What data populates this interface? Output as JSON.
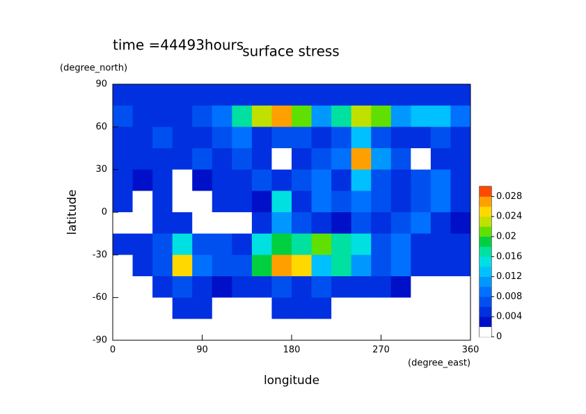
{
  "chart_data": {
    "type": "contour",
    "title": "surface stress",
    "subtitle": "time =44493hours",
    "x_label": "longitude",
    "x_units": "(degree_east)",
    "y_label": "latitude",
    "y_units": "(degree_north)",
    "xlim": [
      0,
      360
    ],
    "xticks": [
      0,
      90,
      180,
      270,
      360
    ],
    "ylim": [
      -90,
      90
    ],
    "yticks": [
      -90,
      -60,
      -30,
      0,
      30,
      60,
      90
    ],
    "x": [
      10,
      30,
      50,
      70,
      90,
      110,
      130,
      150,
      170,
      190,
      210,
      230,
      250,
      270,
      290,
      310,
      330,
      350
    ],
    "y": [
      82.5,
      67.5,
      52.5,
      37.5,
      22.5,
      7.5,
      -7.5,
      -22.5,
      -37.5,
      -52.5,
      -67.5,
      -82.5
    ],
    "z": [
      [
        0.004,
        0.004,
        0.004,
        0.004,
        0.004,
        0.004,
        0.004,
        0.004,
        0.004,
        0.004,
        0.004,
        0.004,
        0.004,
        0.004,
        0.004,
        0.004,
        0.004,
        0.004
      ],
      [
        0.006,
        0.005,
        0.005,
        0.005,
        0.006,
        0.008,
        0.016,
        0.022,
        0.026,
        0.02,
        0.01,
        0.016,
        0.022,
        0.02,
        0.01,
        0.012,
        0.012,
        0.008
      ],
      [
        0.004,
        0.005,
        0.006,
        0.004,
        0.005,
        0.006,
        0.008,
        0.005,
        0.006,
        0.006,
        0.004,
        0.006,
        0.012,
        0.006,
        0.004,
        0.004,
        0.006,
        0.004
      ],
      [
        0.004,
        0.005,
        0.004,
        0.005,
        0.006,
        0.004,
        0.006,
        0.005,
        0.001,
        0.004,
        0.006,
        0.008,
        0.026,
        0.01,
        0.006,
        0.001,
        0.004,
        0.005
      ],
      [
        0.004,
        0.002,
        0.004,
        0.001,
        0.003,
        0.005,
        0.004,
        0.006,
        0.004,
        0.006,
        0.008,
        0.004,
        0.012,
        0.006,
        0.004,
        0.006,
        0.008,
        0.004
      ],
      [
        0.004,
        0.001,
        0.004,
        0.001,
        0.001,
        0.004,
        0.005,
        0.003,
        0.014,
        0.005,
        0.008,
        0.006,
        0.008,
        0.006,
        0.005,
        0.006,
        0.008,
        0.004
      ],
      [
        0.001,
        0.001,
        0.004,
        0.004,
        0.001,
        0.001,
        0.001,
        0.004,
        0.01,
        0.006,
        0.004,
        0.002,
        0.006,
        0.004,
        0.006,
        0.008,
        0.004,
        0.002
      ],
      [
        0.004,
        0.005,
        0.006,
        0.014,
        0.006,
        0.006,
        0.005,
        0.014,
        0.018,
        0.016,
        0.02,
        0.016,
        0.014,
        0.006,
        0.008,
        0.004,
        0.004,
        0.004
      ],
      [
        0.001,
        0.004,
        0.006,
        0.024,
        0.008,
        0.006,
        0.006,
        0.018,
        0.026,
        0.024,
        0.012,
        0.016,
        0.01,
        0.006,
        0.008,
        0.005,
        0.005,
        0.004
      ],
      [
        0.001,
        0.001,
        0.004,
        0.006,
        0.004,
        0.003,
        0.004,
        0.005,
        0.006,
        0.005,
        0.006,
        0.004,
        0.004,
        0.004,
        0.003,
        0.001,
        0.001,
        0.001
      ],
      [
        0.001,
        0.001,
        0.001,
        0.004,
        0.004,
        0.001,
        0.001,
        0.001,
        0.004,
        0.004,
        0.004,
        0.001,
        0.001,
        0.001,
        0.001,
        0.001,
        0.001,
        0.001
      ],
      [
        0,
        0,
        0,
        0,
        0,
        0,
        0,
        0,
        0,
        0,
        0,
        0,
        0,
        0,
        0,
        0,
        0,
        0
      ]
    ],
    "zlim": [
      0,
      0.03
    ],
    "zticks": [
      0,
      0.004,
      0.008,
      0.012,
      0.016,
      0.02,
      0.024,
      0.028
    ],
    "colors": [
      "#ffffff",
      "#0010c8",
      "#0030e0",
      "#0050f0",
      "#0070ff",
      "#0098ff",
      "#00c0ff",
      "#00e0e0",
      "#00e0a0",
      "#00d040",
      "#60e000",
      "#c0e000",
      "#ffd800",
      "#ffa000",
      "#ff4800"
    ]
  }
}
